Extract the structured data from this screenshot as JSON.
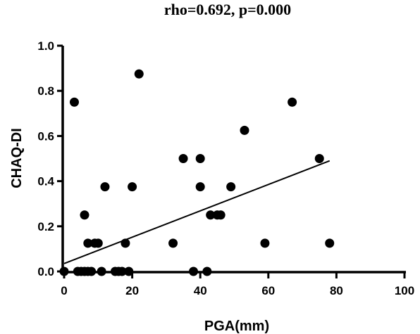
{
  "chart_data": {
    "type": "scatter",
    "title": "rho=0.692, p=0.000",
    "xlabel": "PGA(mm)",
    "ylabel": "CHAQ-DI",
    "xlim": [
      0,
      100
    ],
    "ylim": [
      0,
      1.0
    ],
    "x_ticks": [
      "0",
      "20",
      "40",
      "60",
      "80",
      "100"
    ],
    "y_ticks": [
      "0.0",
      "0.2",
      "0.4",
      "0.6",
      "0.8",
      "1.0"
    ],
    "grid": false,
    "legend": "none",
    "colors": {
      "points": "#000000",
      "axes": "#000000",
      "fit_line": "#000000"
    },
    "points": [
      {
        "x": 0,
        "y": 0.0
      },
      {
        "x": 3,
        "y": 0.75
      },
      {
        "x": 4,
        "y": 0.0
      },
      {
        "x": 5,
        "y": 0.0
      },
      {
        "x": 6,
        "y": 0.0
      },
      {
        "x": 6,
        "y": 0.25
      },
      {
        "x": 7,
        "y": 0.0
      },
      {
        "x": 7,
        "y": 0.125
      },
      {
        "x": 8,
        "y": 0.0
      },
      {
        "x": 9,
        "y": 0.125
      },
      {
        "x": 10,
        "y": 0.125
      },
      {
        "x": 11,
        "y": 0.0
      },
      {
        "x": 12,
        "y": 0.375
      },
      {
        "x": 15,
        "y": 0.0
      },
      {
        "x": 16,
        "y": 0.0
      },
      {
        "x": 17,
        "y": 0.0
      },
      {
        "x": 18,
        "y": 0.125
      },
      {
        "x": 19,
        "y": 0.0
      },
      {
        "x": 20,
        "y": 0.375
      },
      {
        "x": 22,
        "y": 0.875
      },
      {
        "x": 32,
        "y": 0.125
      },
      {
        "x": 35,
        "y": 0.5
      },
      {
        "x": 38,
        "y": 0.0
      },
      {
        "x": 40,
        "y": 0.5
      },
      {
        "x": 40,
        "y": 0.375
      },
      {
        "x": 42,
        "y": 0.0
      },
      {
        "x": 43,
        "y": 0.25
      },
      {
        "x": 45,
        "y": 0.25
      },
      {
        "x": 46,
        "y": 0.25
      },
      {
        "x": 49,
        "y": 0.375
      },
      {
        "x": 53,
        "y": 0.625
      },
      {
        "x": 59,
        "y": 0.125
      },
      {
        "x": 67,
        "y": 0.75
      },
      {
        "x": 75,
        "y": 0.5
      },
      {
        "x": 78,
        "y": 0.125
      }
    ],
    "fit_line": {
      "x": [
        0,
        78
      ],
      "y": [
        0.035,
        0.49
      ]
    }
  }
}
